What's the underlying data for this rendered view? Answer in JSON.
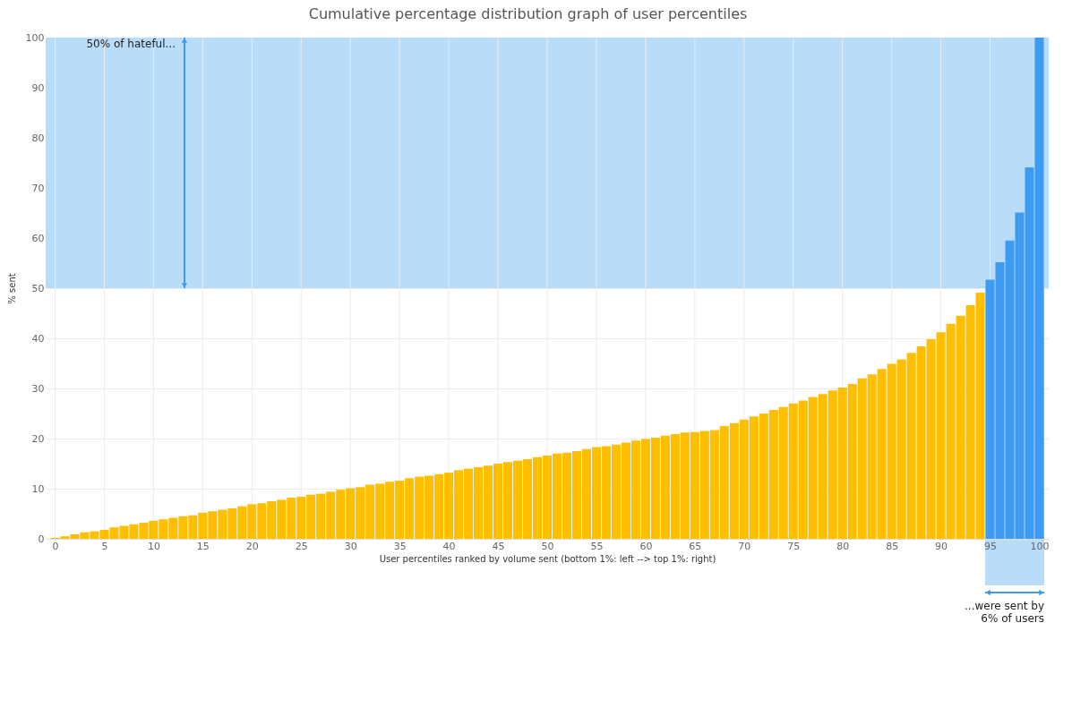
{
  "chart_data": {
    "type": "bar",
    "title": "Cumulative percentage distribution graph of user percentiles",
    "xlabel": "User percentiles ranked by volume sent (bottom 1%: left --> top 1%: right)",
    "ylabel": "% sent",
    "x": [
      0,
      1,
      2,
      3,
      4,
      5,
      6,
      7,
      8,
      9,
      10,
      11,
      12,
      13,
      14,
      15,
      16,
      17,
      18,
      19,
      20,
      21,
      22,
      23,
      24,
      25,
      26,
      27,
      28,
      29,
      30,
      31,
      32,
      33,
      34,
      35,
      36,
      37,
      38,
      39,
      40,
      41,
      42,
      43,
      44,
      45,
      46,
      47,
      48,
      49,
      50,
      51,
      52,
      53,
      54,
      55,
      56,
      57,
      58,
      59,
      60,
      61,
      62,
      63,
      64,
      65,
      66,
      67,
      68,
      69,
      70,
      71,
      72,
      73,
      74,
      75,
      76,
      77,
      78,
      79,
      80,
      81,
      82,
      83,
      84,
      85,
      86,
      87,
      88,
      89,
      90,
      91,
      92,
      93,
      94,
      95,
      96,
      97,
      98,
      99,
      100
    ],
    "values": [
      0.2,
      0.5,
      0.9,
      1.3,
      1.5,
      1.8,
      2.3,
      2.6,
      2.9,
      3.2,
      3.6,
      3.9,
      4.2,
      4.5,
      4.7,
      5.2,
      5.5,
      5.8,
      6.1,
      6.5,
      6.9,
      7.1,
      7.5,
      7.8,
      8.2,
      8.4,
      8.8,
      9.0,
      9.4,
      9.8,
      10.1,
      10.3,
      10.8,
      11.0,
      11.4,
      11.6,
      12.1,
      12.4,
      12.6,
      12.9,
      13.2,
      13.7,
      14.0,
      14.3,
      14.6,
      15.0,
      15.3,
      15.6,
      15.9,
      16.3,
      16.6,
      17.0,
      17.2,
      17.5,
      17.9,
      18.3,
      18.5,
      18.8,
      19.2,
      19.6,
      19.9,
      20.2,
      20.6,
      20.9,
      21.2,
      21.3,
      21.5,
      21.7,
      22.5,
      23.1,
      23.8,
      24.4,
      25.0,
      25.7,
      26.3,
      27.0,
      27.6,
      28.3,
      28.9,
      29.6,
      30.2,
      30.9,
      32.0,
      32.8,
      33.9,
      34.9,
      35.8,
      37.1,
      38.4,
      39.8,
      41.2,
      42.9,
      44.5,
      46.6,
      49.1,
      51.7,
      55.2,
      59.5,
      65.1,
      74.1,
      100
    ],
    "colors": [
      "#ffbf00",
      "#ffbf00",
      "#ffbf00",
      "#ffbf00",
      "#ffbf00",
      "#ffbf00",
      "#ffbf00",
      "#ffbf00",
      "#ffbf00",
      "#ffbf00",
      "#ffbf00",
      "#ffbf00",
      "#ffbf00",
      "#ffbf00",
      "#ffbf00",
      "#ffbf00",
      "#ffbf00",
      "#ffbf00",
      "#ffbf00",
      "#ffbf00",
      "#ffbf00",
      "#ffbf00",
      "#ffbf00",
      "#ffbf00",
      "#ffbf00",
      "#ffbf00",
      "#ffbf00",
      "#ffbf00",
      "#ffbf00",
      "#ffbf00",
      "#ffbf00",
      "#ffbf00",
      "#ffbf00",
      "#ffbf00",
      "#ffbf00",
      "#ffbf00",
      "#ffbf00",
      "#ffbf00",
      "#ffbf00",
      "#ffbf00",
      "#ffbf00",
      "#ffbf00",
      "#ffbf00",
      "#ffbf00",
      "#ffbf00",
      "#ffbf00",
      "#ffbf00",
      "#ffbf00",
      "#ffbf00",
      "#ffbf00",
      "#ffbf00",
      "#ffbf00",
      "#ffbf00",
      "#ffbf00",
      "#ffbf00",
      "#ffbf00",
      "#ffbf00",
      "#ffbf00",
      "#ffbf00",
      "#ffbf00",
      "#ffbf00",
      "#ffbf00",
      "#ffbf00",
      "#ffbf00",
      "#ffbf00",
      "#ffbf00",
      "#ffbf00",
      "#ffbf00",
      "#ffbf00",
      "#ffbf00",
      "#ffbf00",
      "#ffbf00",
      "#ffbf00",
      "#ffbf00",
      "#ffbf00",
      "#ffbf00",
      "#ffbf00",
      "#ffbf00",
      "#ffbf00",
      "#ffbf00",
      "#ffbf00",
      "#ffbf00",
      "#ffbf00",
      "#ffbf00",
      "#ffbf00",
      "#ffbf00",
      "#ffbf00",
      "#ffbf00",
      "#ffbf00",
      "#ffbf00",
      "#ffbf00",
      "#ffbf00",
      "#ffbf00",
      "#ffbf00",
      "#ffbf00",
      "#3d9bf2",
      "#3d9bf2",
      "#3d9bf2",
      "#3d9bf2",
      "#3d9bf2",
      "#3d9bf2"
    ],
    "xlim": [
      -0.5,
      100.5
    ],
    "xticks": [
      0,
      5,
      10,
      15,
      20,
      25,
      30,
      35,
      40,
      45,
      50,
      55,
      60,
      65,
      70,
      75,
      80,
      85,
      90,
      95,
      100
    ],
    "ylim": [
      0,
      100
    ],
    "yticks": [
      0,
      10,
      20,
      30,
      40,
      50,
      60,
      70,
      80,
      90,
      100
    ],
    "grid": true,
    "bands": [
      {
        "axis": "y",
        "from": 50,
        "to": 100,
        "label": "50% of hateful...",
        "color": "#b9dcf8"
      },
      {
        "axis": "x",
        "from": 94.5,
        "to": 100.5,
        "label": "...were sent by\n6% of users",
        "color": "#b9dcf8"
      }
    ]
  }
}
